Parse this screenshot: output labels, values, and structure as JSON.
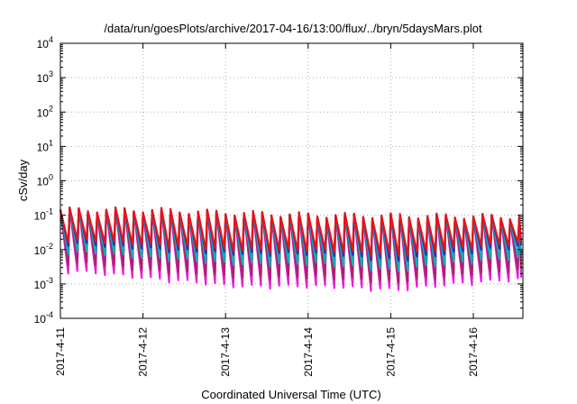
{
  "chart_data": {
    "type": "line",
    "title": "/data/run/goesPlots/archive/2017-04-16/13:00/flux/../bryn/5daysMars.plot",
    "xlabel": "Coordinated Universal Time (UTC)",
    "ylabel": "cSv/day",
    "y_scale": "log",
    "ylim": [
      0.0001,
      10000
    ],
    "xlim_days": [
      0,
      5.58
    ],
    "grid": true,
    "y_ticks": [
      {
        "value": 0.0001,
        "base": "10",
        "exp": "-4"
      },
      {
        "value": 0.001,
        "base": "10",
        "exp": "-3"
      },
      {
        "value": 0.01,
        "base": "10",
        "exp": "-2"
      },
      {
        "value": 0.1,
        "base": "10",
        "exp": "-1"
      },
      {
        "value": 1,
        "base": "10",
        "exp": "0"
      },
      {
        "value": 10,
        "base": "10",
        "exp": "1"
      },
      {
        "value": 100,
        "base": "10",
        "exp": "2"
      },
      {
        "value": 1000,
        "base": "10",
        "exp": "3"
      },
      {
        "value": 10000,
        "base": "10",
        "exp": "4"
      }
    ],
    "x_ticks": [
      {
        "value": 0,
        "label": "2017-4-11"
      },
      {
        "value": 1,
        "label": "2017-4-12"
      },
      {
        "value": 2,
        "label": "2017-4-13"
      },
      {
        "value": 3,
        "label": "2017-4-14"
      },
      {
        "value": 4,
        "label": "2017-4-15"
      },
      {
        "value": 5,
        "label": "2017-4-16"
      }
    ],
    "series_shape": {
      "cycles_per_day": 9,
      "peak_max": [
        0.17,
        0.17,
        0.14,
        0.12,
        0.115,
        0.11
      ],
      "lows": [
        {
          "color": "#ff00ff",
          "min": [
            0.0025,
            0.0015,
            0.0009,
            0.0009,
            0.0007,
            0.0012
          ]
        },
        {
          "color": "#cc33aa",
          "min": [
            0.0032,
            0.0019,
            0.0012,
            0.0012,
            0.0009,
            0.0016
          ]
        },
        {
          "color": "#aa2266",
          "min": [
            0.0045,
            0.0026,
            0.0017,
            0.0017,
            0.0012,
            0.0022
          ]
        },
        {
          "color": "#00b3b3",
          "min": [
            0.009,
            0.006,
            0.004,
            0.004,
            0.0025,
            0.005
          ]
        },
        {
          "color": "#1133cc",
          "min": [
            0.016,
            0.011,
            0.008,
            0.008,
            0.005,
            0.01
          ]
        },
        {
          "color": "#ee1111",
          "min": [
            0.02,
            0.014,
            0.01,
            0.01,
            0.007,
            0.013
          ]
        }
      ]
    },
    "colors": {
      "magenta": "#ff00ff",
      "purple": "#cc33aa",
      "maroon": "#aa2266",
      "cyan": "#00b3b3",
      "blue": "#1133cc",
      "red": "#ee1111",
      "grid": "#b0b0b0"
    }
  }
}
